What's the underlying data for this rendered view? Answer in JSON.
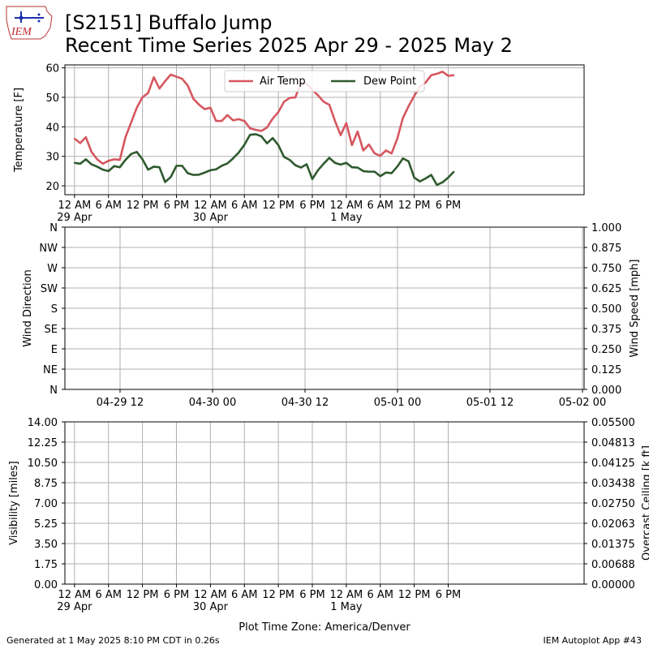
{
  "header": {
    "title_line1": "[S2151] Buffalo Jump",
    "title_line2": "Recent Time Series 2025 Apr 29 - 2025 May 2",
    "logo_text": "IEM"
  },
  "footer": {
    "generated": "Generated at 1 May 2025 8:10 PM CDT in 0.26s",
    "app": "IEM Autoplot App #43"
  },
  "colors": {
    "air_temp": "#d6575f",
    "dew_point": "#2f5a2f",
    "grid": "#b0b0b0",
    "ceiling_label": "#008000"
  },
  "chart_data": [
    {
      "type": "line",
      "ylabel": "Temperature [F]",
      "ylim": [
        17,
        61
      ],
      "yticks": [
        20,
        30,
        40,
        50,
        60
      ],
      "xlim_hours": [
        -1.7,
        90
      ],
      "xticks": [
        {
          "hour": 0,
          "label": "12 AM",
          "sub": "29 Apr"
        },
        {
          "hour": 6,
          "label": "6 AM",
          "sub": ""
        },
        {
          "hour": 12,
          "label": "12 PM",
          "sub": ""
        },
        {
          "hour": 18,
          "label": "6 PM",
          "sub": ""
        },
        {
          "hour": 24,
          "label": "12 AM",
          "sub": "30 Apr"
        },
        {
          "hour": 30,
          "label": "6 AM",
          "sub": ""
        },
        {
          "hour": 36,
          "label": "12 PM",
          "sub": ""
        },
        {
          "hour": 42,
          "label": "6 PM",
          "sub": ""
        },
        {
          "hour": 48,
          "label": "12 AM",
          "sub": "1 May"
        },
        {
          "hour": 54,
          "label": "6 AM",
          "sub": ""
        },
        {
          "hour": 60,
          "label": "12 PM",
          "sub": ""
        },
        {
          "hour": 66,
          "label": "6 PM",
          "sub": ""
        }
      ],
      "grid": true,
      "legend_position": "top-center",
      "series": [
        {
          "name": "Air Temp",
          "color": "#d6575f",
          "values": [
            36.0,
            34.5,
            36.5,
            31.5,
            29.0,
            27.5,
            28.5,
            29.0,
            28.8,
            36.5,
            41.5,
            46.5,
            50.0,
            51.5,
            56.8,
            53.0,
            55.5,
            57.7,
            57.0,
            56.3,
            54.0,
            49.5,
            47.5,
            46.0,
            46.5,
            42.0,
            42.0,
            44.0,
            42.2,
            42.6,
            42.0,
            39.5,
            39.0,
            38.6,
            39.8,
            42.8,
            45.0,
            48.5,
            49.8,
            50.0,
            55.0,
            54.6,
            52.5,
            50.7,
            48.5,
            47.5,
            42.0,
            37.2,
            41.3,
            33.8,
            38.4,
            32.0,
            34.0,
            31.0,
            30.2,
            32.0,
            31.0,
            36.0,
            43.0,
            47.0,
            50.5,
            53.7,
            55.0,
            57.5,
            58.0,
            58.7,
            57.3,
            57.5
          ]
        },
        {
          "name": "Dew Point",
          "color": "#2f5a2f",
          "values": [
            27.8,
            27.5,
            29.0,
            27.3,
            26.5,
            25.5,
            25.0,
            26.7,
            26.3,
            28.8,
            30.8,
            31.5,
            29.0,
            25.5,
            26.5,
            26.3,
            21.3,
            23.0,
            26.8,
            26.8,
            24.3,
            23.7,
            23.8,
            24.5,
            25.3,
            25.6,
            26.8,
            27.6,
            29.3,
            31.3,
            33.9,
            37.3,
            37.5,
            36.8,
            34.4,
            36.2,
            33.8,
            29.8,
            28.8,
            27.0,
            26.2,
            27.3,
            22.3,
            25.3,
            27.5,
            29.5,
            27.8,
            27.2,
            27.8,
            26.3,
            26.2,
            25.0,
            24.8,
            24.8,
            23.3,
            24.5,
            24.3,
            26.5,
            29.3,
            28.3,
            22.8,
            21.5,
            22.5,
            23.7,
            20.3,
            21.2,
            22.8,
            24.8
          ]
        }
      ]
    },
    {
      "type": "line",
      "ylabel": "Wind Direction",
      "ylabel_right": "Wind Speed [mph]",
      "yticks": [
        "N",
        "NE",
        "E",
        "SE",
        "S",
        "SW",
        "W",
        "NW",
        "N"
      ],
      "yticks_right": [
        "0.000",
        "0.125",
        "0.250",
        "0.375",
        "0.500",
        "0.625",
        "0.750",
        "0.875",
        "1.000"
      ],
      "xticks": [
        "04-29 12",
        "04-30 00",
        "04-30 12",
        "05-01 00",
        "05-01 12",
        "05-02 00"
      ],
      "grid": true,
      "series": []
    },
    {
      "type": "line",
      "ylabel": "Visibility [miles]",
      "ylabel_right": "Overcast Ceiling [k ft]",
      "yticks": [
        "0.00",
        "1.75",
        "3.50",
        "5.25",
        "7.00",
        "8.75",
        "10.50",
        "12.25",
        "14.00"
      ],
      "yticks_right": [
        "0.00000",
        "0.00688",
        "0.01375",
        "0.02063",
        "0.02750",
        "0.03438",
        "0.04125",
        "0.04813",
        "0.05500"
      ],
      "xticks": [
        {
          "label": "12 AM",
          "sub": "29 Apr"
        },
        {
          "label": "6 AM",
          "sub": ""
        },
        {
          "label": "12 PM",
          "sub": ""
        },
        {
          "label": "6 PM",
          "sub": ""
        },
        {
          "label": "12 AM",
          "sub": "30 Apr"
        },
        {
          "label": "6 AM",
          "sub": ""
        },
        {
          "label": "12 PM",
          "sub": ""
        },
        {
          "label": "6 PM",
          "sub": ""
        },
        {
          "label": "12 AM",
          "sub": "1 May"
        },
        {
          "label": "6 AM",
          "sub": ""
        },
        {
          "label": "12 PM",
          "sub": ""
        },
        {
          "label": "6 PM",
          "sub": ""
        }
      ],
      "xlabel": "Plot Time Zone: America/Denver",
      "grid": true,
      "series": []
    }
  ]
}
